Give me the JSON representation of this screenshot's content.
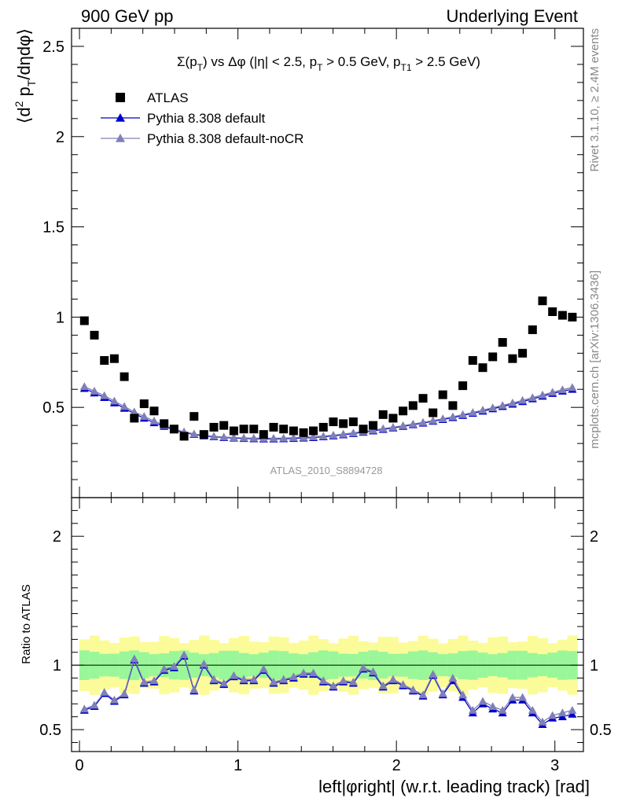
{
  "header": {
    "left": "900 GeV pp",
    "right": "Underlying Event"
  },
  "chart_data": {
    "type": "scatter",
    "title": "Σ(p_T) vs Δφ (|η| < 2.5, p_T > 0.5 GeV, p_T1 > 2.5 GeV)",
    "ylabel": "⟨d² p_T/dηdφ⟩",
    "xlabel": "left|φright| (w.r.t. leading track) [rad]",
    "ratio_ylabel": "Ratio to ATLAS",
    "watermark": "ATLAS_2010_S8894728",
    "side_top": "Rivet 3.1.10, ≥ 2.4M events",
    "side_bottom": "mcplots.cern.ch [arXiv:1306.3436]",
    "xlim": [
      -0.05,
      3.18
    ],
    "ylim": [
      0,
      2.6
    ],
    "ratio_ylim": [
      0.33,
      2.3
    ],
    "xticks": [
      0,
      1,
      2,
      3
    ],
    "yticks": [
      0.5,
      1,
      1.5,
      2,
      2.5
    ],
    "ratio_yticks": [
      0.5,
      1,
      2
    ],
    "legend_position": "top-left",
    "legend": [
      "ATLAS",
      "Pythia 8.308 default",
      "Pythia 8.308 default-noCR"
    ],
    "x": [
      0.031,
      0.094,
      0.157,
      0.22,
      0.283,
      0.346,
      0.408,
      0.471,
      0.534,
      0.597,
      0.66,
      0.723,
      0.785,
      0.848,
      0.911,
      0.974,
      1.037,
      1.1,
      1.162,
      1.225,
      1.288,
      1.351,
      1.414,
      1.476,
      1.539,
      1.602,
      1.665,
      1.728,
      1.791,
      1.853,
      1.916,
      1.979,
      2.042,
      2.105,
      2.168,
      2.231,
      2.293,
      2.356,
      2.419,
      2.482,
      2.545,
      2.608,
      2.67,
      2.733,
      2.796,
      2.859,
      2.922,
      2.985,
      3.048,
      3.11
    ],
    "series": [
      {
        "name": "ATLAS",
        "color": "#000000",
        "values": [
          0.98,
          0.9,
          0.76,
          0.77,
          0.67,
          0.44,
          0.52,
          0.48,
          0.41,
          0.38,
          0.34,
          0.45,
          0.35,
          0.39,
          0.4,
          0.37,
          0.38,
          0.38,
          0.35,
          0.39,
          0.38,
          0.37,
          0.36,
          0.37,
          0.39,
          0.42,
          0.41,
          0.42,
          0.38,
          0.4,
          0.46,
          0.44,
          0.48,
          0.51,
          0.55,
          0.47,
          0.57,
          0.51,
          0.62,
          0.76,
          0.72,
          0.78,
          0.86,
          0.77,
          0.8,
          0.93,
          1.09,
          1.03,
          1.01,
          1.0
        ],
        "band_1sigma": 0.1,
        "band_2sigma": 0.2
      },
      {
        "name": "Pythia 8.308 default",
        "color": "#0000cc",
        "values": [
          0.605,
          0.58,
          0.555,
          0.525,
          0.495,
          0.465,
          0.44,
          0.415,
          0.395,
          0.375,
          0.36,
          0.35,
          0.342,
          0.337,
          0.333,
          0.33,
          0.328,
          0.326,
          0.325,
          0.325,
          0.326,
          0.328,
          0.33,
          0.333,
          0.337,
          0.342,
          0.348,
          0.355,
          0.362,
          0.37,
          0.378,
          0.386,
          0.395,
          0.404,
          0.413,
          0.423,
          0.433,
          0.443,
          0.455,
          0.467,
          0.479,
          0.492,
          0.505,
          0.518,
          0.532,
          0.547,
          0.562,
          0.577,
          0.59,
          0.6
        ],
        "ratio": [
          0.65,
          0.68,
          0.78,
          0.72,
          0.77,
          1.04,
          0.86,
          0.87,
          0.96,
          0.98,
          1.07,
          0.8,
          1.0,
          0.88,
          0.85,
          0.91,
          0.88,
          0.88,
          0.96,
          0.86,
          0.88,
          0.9,
          0.93,
          0.93,
          0.87,
          0.83,
          0.87,
          0.86,
          0.97,
          0.94,
          0.83,
          0.88,
          0.84,
          0.8,
          0.76,
          0.92,
          0.77,
          0.88,
          0.75,
          0.63,
          0.7,
          0.66,
          0.63,
          0.73,
          0.73,
          0.63,
          0.54,
          0.59,
          0.6,
          0.62
        ]
      },
      {
        "name": "Pythia 8.308 default-noCR",
        "color": "#8080b8",
        "values": [
          0.615,
          0.59,
          0.565,
          0.535,
          0.505,
          0.475,
          0.45,
          0.425,
          0.4,
          0.38,
          0.365,
          0.353,
          0.345,
          0.34,
          0.336,
          0.333,
          0.331,
          0.33,
          0.329,
          0.329,
          0.33,
          0.332,
          0.334,
          0.337,
          0.341,
          0.346,
          0.352,
          0.359,
          0.366,
          0.374,
          0.382,
          0.39,
          0.399,
          0.408,
          0.417,
          0.427,
          0.437,
          0.448,
          0.46,
          0.472,
          0.485,
          0.498,
          0.511,
          0.525,
          0.539,
          0.554,
          0.569,
          0.584,
          0.598,
          0.61
        ],
        "ratio": [
          0.66,
          0.69,
          0.79,
          0.73,
          0.78,
          1.05,
          0.87,
          0.88,
          0.97,
          0.99,
          1.08,
          0.81,
          1.01,
          0.89,
          0.86,
          0.92,
          0.89,
          0.89,
          0.97,
          0.87,
          0.89,
          0.91,
          0.94,
          0.94,
          0.88,
          0.84,
          0.88,
          0.87,
          0.98,
          0.95,
          0.84,
          0.89,
          0.85,
          0.81,
          0.77,
          0.93,
          0.78,
          0.9,
          0.77,
          0.65,
          0.72,
          0.68,
          0.65,
          0.75,
          0.75,
          0.65,
          0.56,
          0.61,
          0.63,
          0.65
        ]
      }
    ]
  }
}
